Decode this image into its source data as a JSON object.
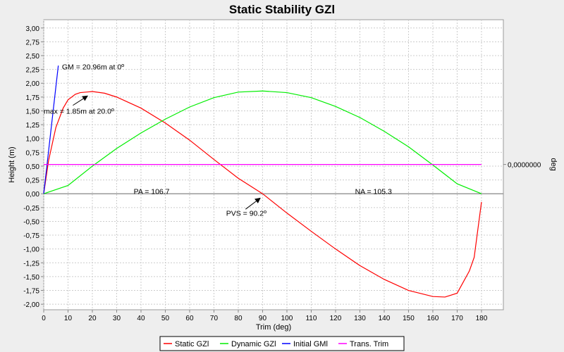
{
  "chart_data": {
    "type": "line",
    "title": "Static Stability GZl",
    "xlabel": "Trim (deg)",
    "ylabel": "Height (m)",
    "right_axis_label": "deg",
    "right_axis_tick": "0,0000000",
    "xlim": [
      0,
      189
    ],
    "ylim": [
      -2.1,
      3.15
    ],
    "grid": true,
    "legend_position": "bottom",
    "xticks": [
      "0",
      "10",
      "20",
      "30",
      "40",
      "50",
      "60",
      "70",
      "80",
      "90",
      "100",
      "110",
      "120",
      "130",
      "140",
      "150",
      "160",
      "170",
      "180"
    ],
    "yticks": [
      "3,00",
      "2,75",
      "2,50",
      "2,25",
      "2,00",
      "1,75",
      "1,50",
      "1,25",
      "1,00",
      "0,75",
      "0,50",
      "0,25",
      "0,00",
      "-0,25",
      "-0,50",
      "-0,75",
      "-1,00",
      "-1,25",
      "-1,50",
      "-1,75",
      "-2,00"
    ],
    "series": [
      {
        "name": "Static GZl",
        "color": "#ff0000",
        "x": [
          0,
          2,
          5,
          8,
          10,
          13,
          15,
          20,
          25,
          30,
          40,
          50,
          60,
          70,
          80,
          90,
          100,
          110,
          120,
          130,
          140,
          150,
          160,
          165,
          170,
          175,
          177,
          180
        ],
        "y": [
          0,
          0.6,
          1.2,
          1.55,
          1.7,
          1.8,
          1.83,
          1.85,
          1.82,
          1.75,
          1.55,
          1.28,
          0.97,
          0.62,
          0.28,
          0,
          -0.35,
          -0.68,
          -1.0,
          -1.3,
          -1.55,
          -1.75,
          -1.86,
          -1.87,
          -1.8,
          -1.4,
          -1.15,
          -0.15
        ]
      },
      {
        "name": "Dynamic GZl",
        "color": "#00ee00",
        "x": [
          0,
          10,
          20,
          30,
          40,
          50,
          60,
          70,
          80,
          90,
          100,
          110,
          120,
          130,
          140,
          150,
          160,
          170,
          180
        ],
        "y": [
          0,
          0.15,
          0.5,
          0.82,
          1.1,
          1.35,
          1.57,
          1.74,
          1.84,
          1.86,
          1.83,
          1.74,
          1.58,
          1.38,
          1.13,
          0.85,
          0.52,
          0.18,
          0
        ]
      },
      {
        "name": "Initial GMl",
        "color": "#0000ff",
        "x": [
          0,
          6
        ],
        "y": [
          0,
          2.32
        ]
      },
      {
        "name": "Trans. Trim",
        "color": "#ff00ff",
        "x": [
          0,
          180
        ],
        "y": [
          0.53,
          0.53
        ]
      }
    ],
    "annotations": [
      {
        "text": "GM = 20.96m at 0º",
        "x": 7.5,
        "y": 2.3
      },
      {
        "text": "max = 1.85m at 20.0º",
        "x": 0,
        "y": 1.5,
        "arrow_to": [
          18,
          1.77
        ],
        "arrow_from": [
          12,
          1.6
        ]
      },
      {
        "text": "PA = 106.7",
        "x": 37,
        "y": 0.05
      },
      {
        "text": "NA = 105.3",
        "x": 128,
        "y": 0.05
      },
      {
        "text": "PVS = 90.2º",
        "x": 75,
        "y": -0.35,
        "arrow_to": [
          89,
          -0.08
        ],
        "arrow_from": [
          83,
          -0.28
        ]
      }
    ]
  }
}
